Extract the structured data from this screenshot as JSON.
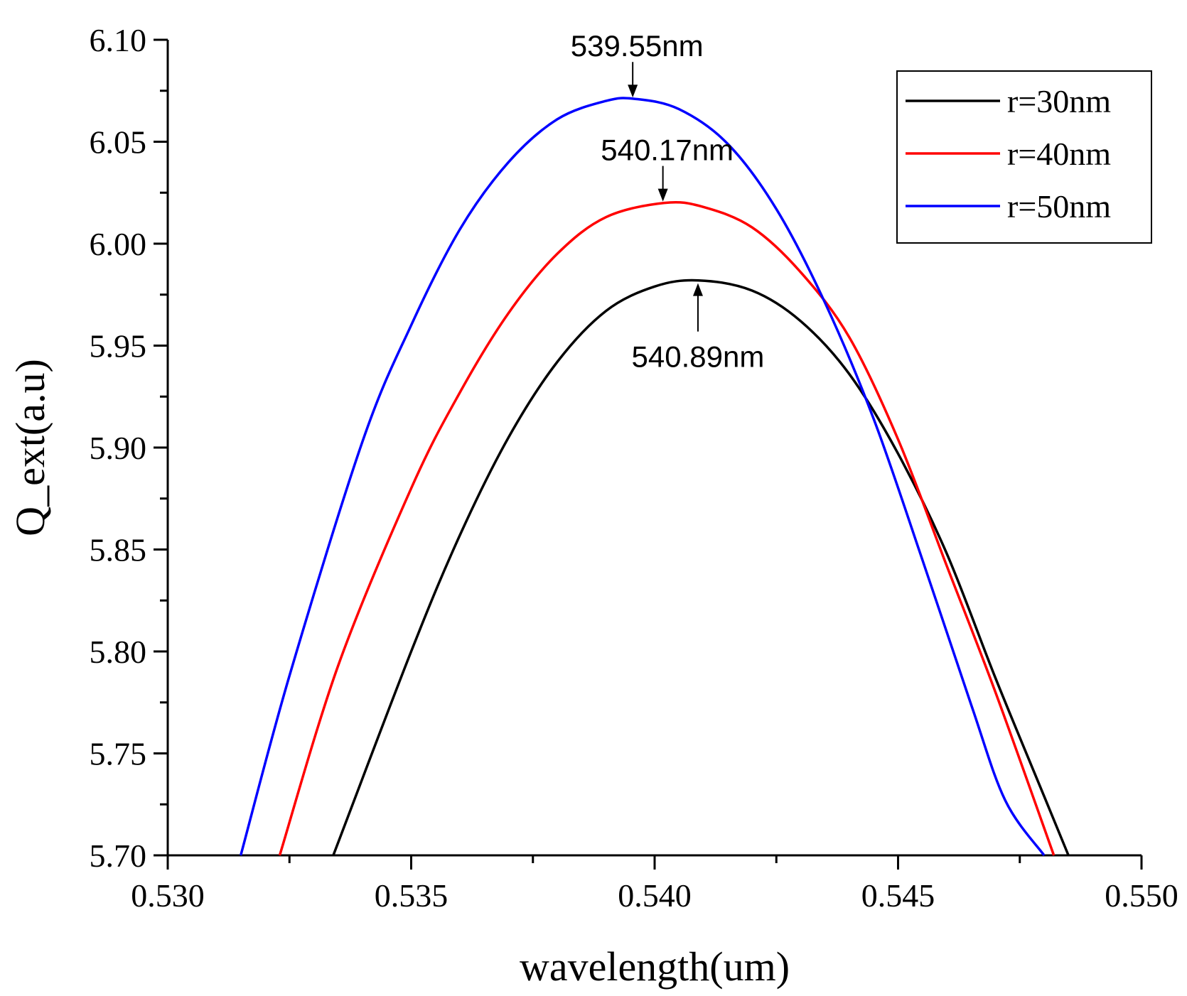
{
  "chart_data": {
    "type": "line",
    "title": "",
    "xlabel": "wavelength(um)",
    "ylabel": "Q_ext(a.u)",
    "xlim": [
      0.53,
      0.55
    ],
    "ylim": [
      5.7,
      6.1
    ],
    "xticks": [
      "0.530",
      "0.535",
      "0.540",
      "0.545",
      "0.550"
    ],
    "yticks": [
      "5.70",
      "5.75",
      "5.80",
      "5.85",
      "5.90",
      "5.95",
      "6.00",
      "6.05",
      "6.10"
    ],
    "grid": false,
    "legend_position": "top-right",
    "series": [
      {
        "name": "r=30nm",
        "color": "#000000",
        "x": [
          0.5334,
          0.535,
          0.536,
          0.537,
          0.538,
          0.539,
          0.54,
          0.5409,
          0.542,
          0.543,
          0.544,
          0.545,
          0.546,
          0.547,
          0.548,
          0.5485
        ],
        "y": [
          5.7,
          5.8,
          5.857,
          5.905,
          5.942,
          5.967,
          5.979,
          5.982,
          5.977,
          5.962,
          5.936,
          5.897,
          5.848,
          5.787,
          5.729,
          5.7
        ]
      },
      {
        "name": "r=40nm",
        "color": "#ff0000",
        "x": [
          0.5323,
          0.5335,
          0.535,
          0.536,
          0.537,
          0.538,
          0.539,
          0.5402,
          0.541,
          0.542,
          0.543,
          0.544,
          0.545,
          0.546,
          0.547,
          0.5482
        ],
        "y": [
          5.7,
          5.793,
          5.88,
          5.927,
          5.966,
          5.995,
          6.013,
          6.02,
          6.018,
          6.008,
          5.986,
          5.954,
          5.904,
          5.842,
          5.78,
          5.7
        ]
      },
      {
        "name": "r=50nm",
        "color": "#0000ff",
        "x": [
          0.5315,
          0.5325,
          0.534,
          0.535,
          0.536,
          0.537,
          0.538,
          0.539,
          0.5396,
          0.5405,
          0.5415,
          0.5425,
          0.5435,
          0.5445,
          0.5455,
          0.5465,
          0.5472,
          0.548
        ],
        "y": [
          5.7,
          5.788,
          5.903,
          5.96,
          6.007,
          6.04,
          6.061,
          6.07,
          6.071,
          6.066,
          6.049,
          6.017,
          5.971,
          5.914,
          5.845,
          5.774,
          5.727,
          5.7
        ]
      }
    ],
    "annotations": [
      {
        "text": "539.55nm",
        "x": 0.53955,
        "y": 6.071,
        "placement": "above"
      },
      {
        "text": "540.17nm",
        "x": 0.54017,
        "y": 6.02,
        "placement": "above"
      },
      {
        "text": "540.89nm",
        "x": 0.54089,
        "y": 5.982,
        "placement": "below"
      }
    ]
  }
}
